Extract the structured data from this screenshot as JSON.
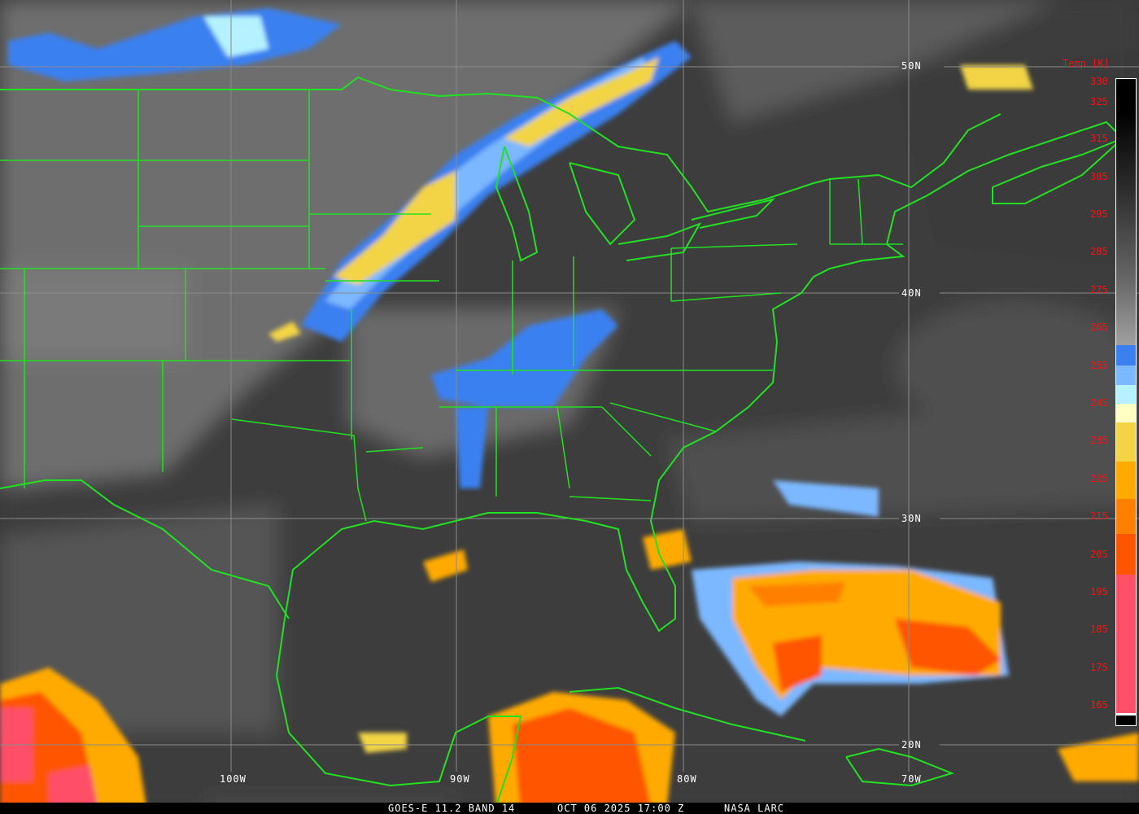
{
  "footer": {
    "satellite": "GOES-E 11.2 BAND 14",
    "datetime": "OCT 06 2025 17:00 Z",
    "source": "NASA LARC"
  },
  "grid": {
    "latitudes": [
      "50N",
      "40N",
      "30N",
      "20N"
    ],
    "longitudes": [
      "100W",
      "90W",
      "80W",
      "70W"
    ],
    "line_color": "#8a8a8a"
  },
  "colorbar": {
    "title": "Temp [K]",
    "ticks": [
      "330",
      "325",
      "315",
      "305",
      "295",
      "285",
      "275",
      "265",
      "255",
      "245",
      "235",
      "225",
      "215",
      "205",
      "195",
      "185",
      "175",
      "165"
    ],
    "tick_color": "#ff1010",
    "segments": [
      {
        "from": 330,
        "to": 260,
        "color": "grayscale black-to-gray"
      },
      {
        "color": "#3a80f0"
      },
      {
        "color": "#7cb8ff"
      },
      {
        "color": "#b4f2ff"
      },
      {
        "color": "#ffffc4"
      },
      {
        "color": "#f2d444"
      },
      {
        "color": "#ffaa00"
      },
      {
        "color": "#ff8000"
      },
      {
        "color": "#ff5400"
      },
      {
        "color": "#ff5068"
      },
      {
        "color": "#ffffff"
      },
      {
        "color": "#000000"
      }
    ]
  },
  "borders_color": "#22e022"
}
